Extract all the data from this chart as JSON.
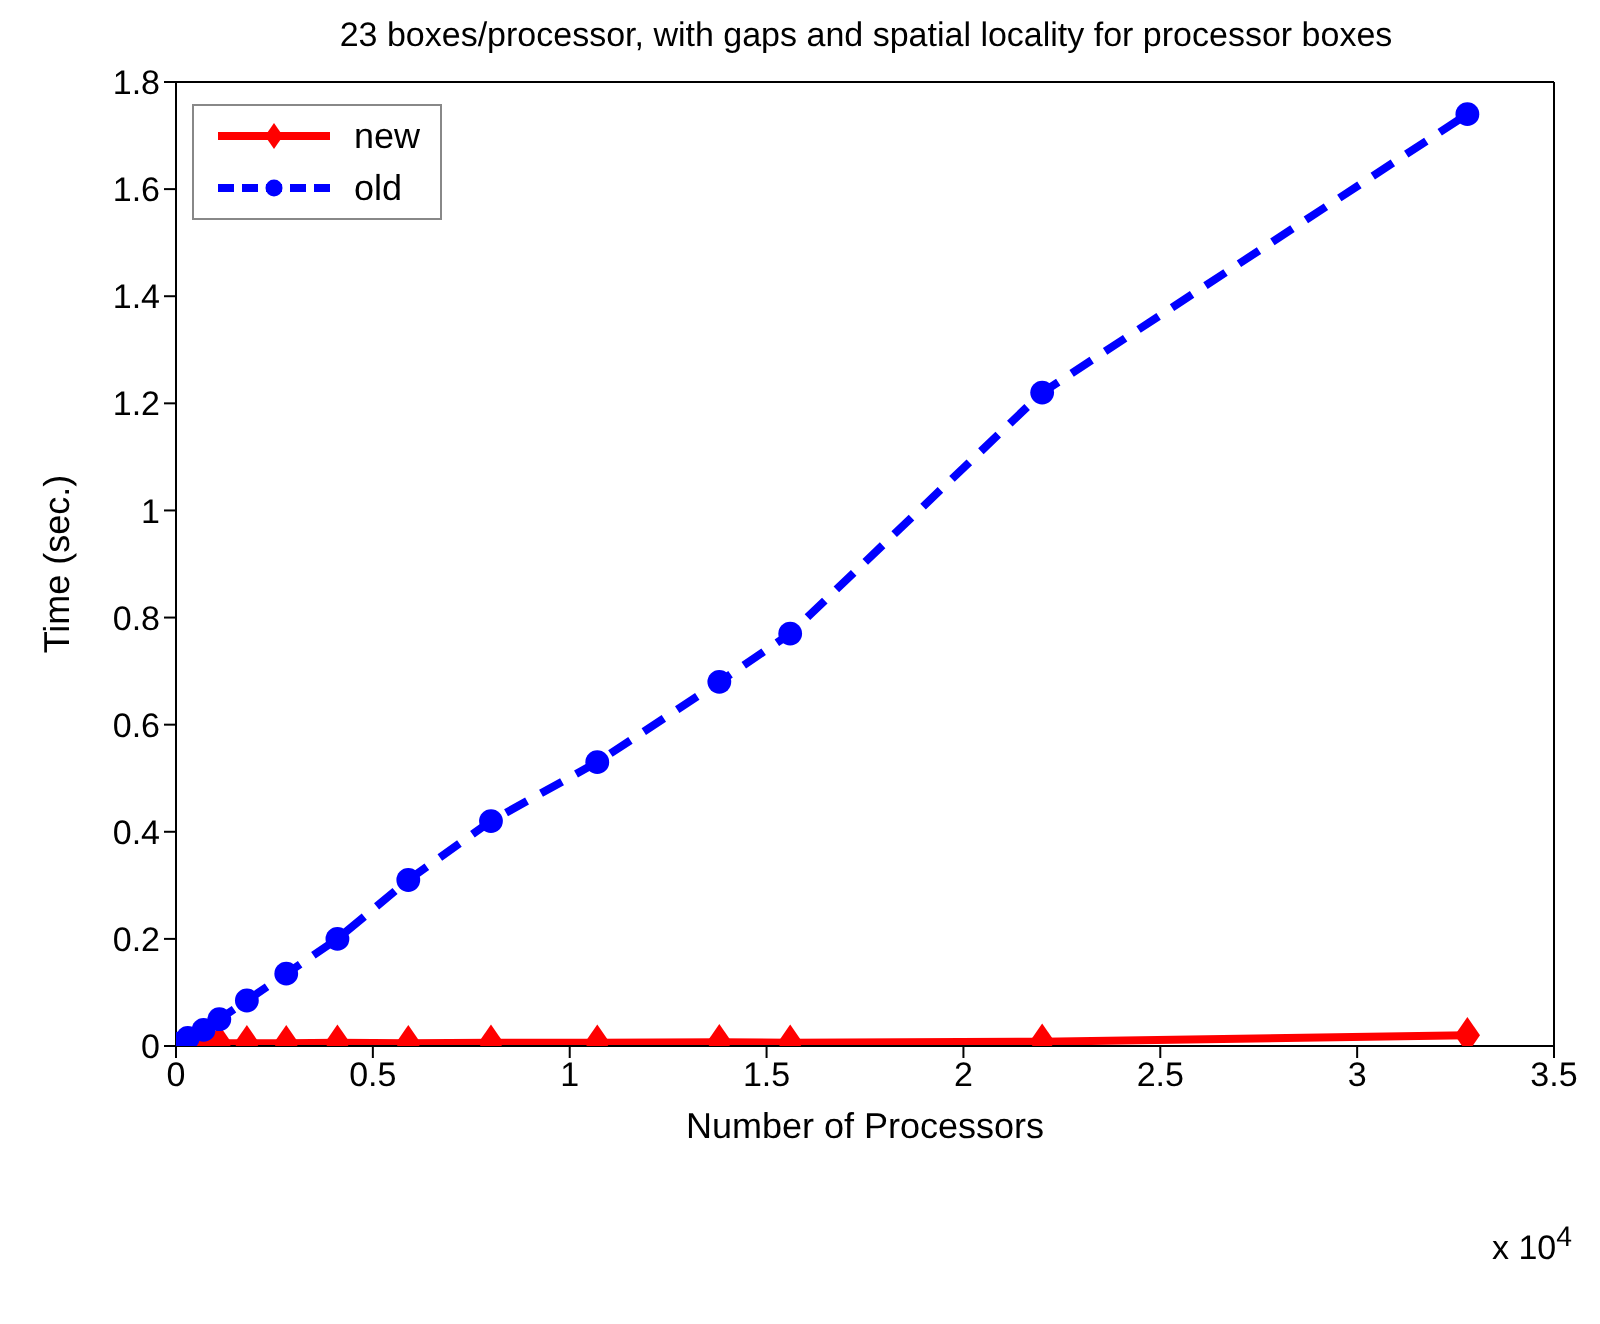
{
  "chart_data": {
    "type": "line",
    "title": "23 boxes/processor, with gaps and spatial locality for processor boxes",
    "xlabel": "Number of Processors",
    "ylabel": "Time (sec.)",
    "annotations": [
      "x 10$^{4}$"
    ],
    "x": [
      0.01,
      0.03,
      0.07,
      0.11,
      0.18,
      0.28,
      0.41,
      0.59,
      0.8,
      1.07,
      1.38,
      1.56,
      2.2,
      3.28
    ],
    "series": [
      {
        "name": "new",
        "color": "#ff0000",
        "marker": "diamond",
        "line_style": "solid",
        "values": [
          null,
          null,
          0.005,
          0.005,
          0.005,
          0.005,
          0.006,
          0.005,
          0.006,
          0.006,
          0.007,
          0.006,
          0.008,
          0.02
        ]
      },
      {
        "name": "old",
        "color": "#0000ff",
        "marker": "circle",
        "line_style": "dashed",
        "values": [
          0.005,
          0.015,
          0.03,
          0.05,
          0.085,
          0.135,
          0.2,
          0.31,
          0.42,
          0.53,
          0.68,
          0.77,
          1.22,
          1.74
        ]
      }
    ],
    "xlim": [
      0,
      3.5
    ],
    "xticks": [
      0,
      0.5,
      1,
      1.5,
      2,
      2.5,
      3,
      3.5
    ],
    "ylim": [
      0,
      1.8
    ],
    "yticks": [
      0,
      0.2,
      0.4,
      0.6,
      0.8,
      1,
      1.2,
      1.4,
      1.6,
      1.8
    ],
    "grid": false,
    "legend": "top left"
  }
}
